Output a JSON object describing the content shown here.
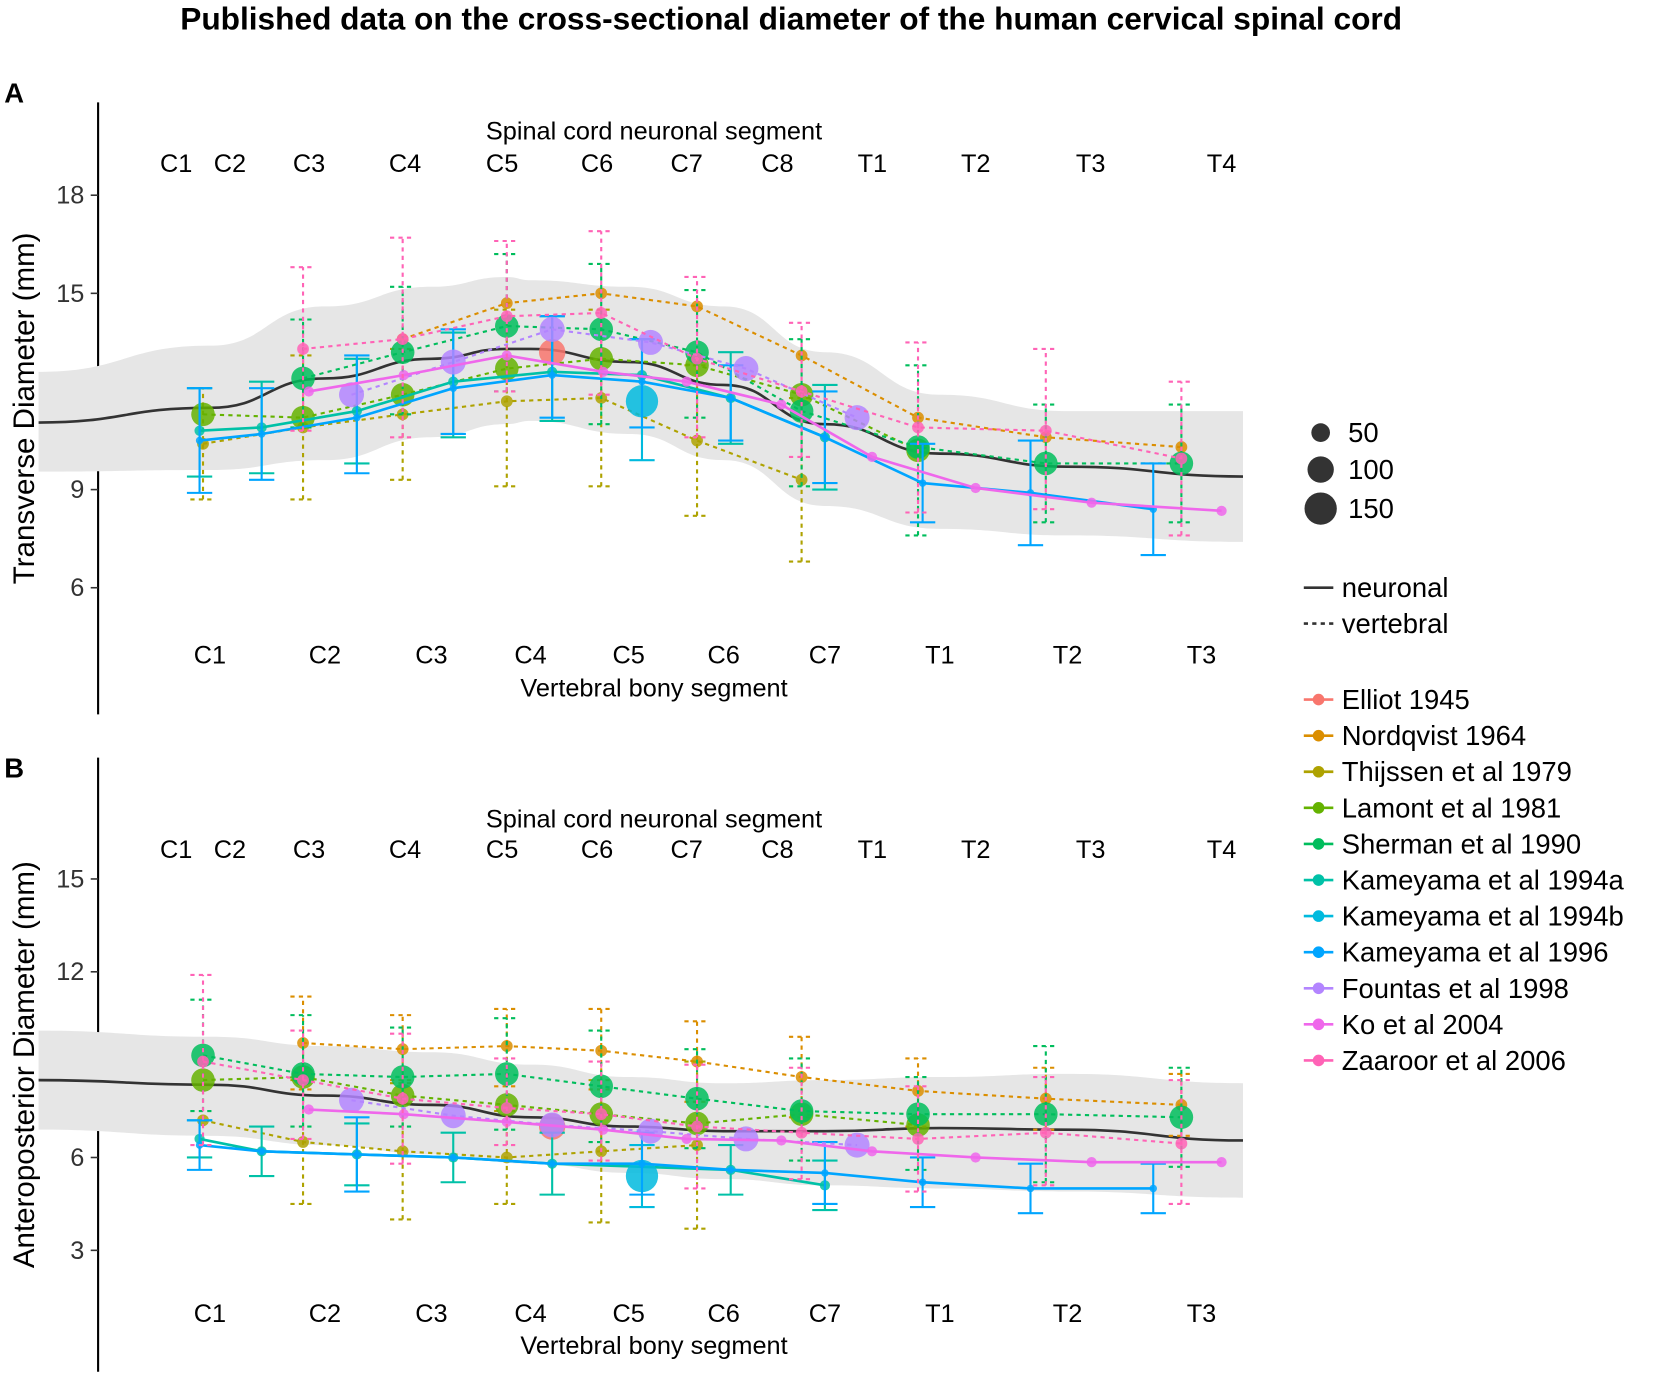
{
  "title": "Published data on the cross-sectional diameter of the human cervical spinal cord",
  "chart_data": [
    {
      "type": "scatter",
      "panel": "A",
      "ylabel": "Transverse Diameter (mm)",
      "top_axis_label": "Spinal cord neuronal segment",
      "top_ticks": [
        "C1",
        "C2",
        "C3",
        "C4",
        "C5",
        "C6",
        "C7",
        "C8",
        "T1",
        "T2",
        "T3",
        "T4"
      ],
      "xlabel": "Vertebral bony segment",
      "x_ticks": [
        "C1",
        "C2",
        "C3",
        "C4",
        "C5",
        "C6",
        "C7",
        "T1",
        "T2",
        "T3"
      ],
      "y_ticks": [
        6,
        9,
        12,
        15,
        18
      ],
      "ylim": [
        2.7,
        20.3
      ],
      "neuronal_fit": {
        "x": [
          -0.49,
          1,
          2,
          3,
          3.76,
          4,
          5,
          6,
          7,
          8,
          9,
          10.31
        ],
        "y": [
          11.05,
          11.5,
          12.4,
          13.0,
          13.3,
          13.3,
          12.9,
          12.2,
          11.0,
          10.1,
          9.7,
          9.4
        ],
        "band_upper": [
          12.6,
          13.4,
          14.6,
          15.2,
          15.5,
          15.4,
          15.2,
          14.6,
          13.2,
          11.9,
          11.4,
          11.4
        ],
        "band_lower": [
          9.55,
          9.6,
          9.9,
          10.6,
          11.0,
          11.1,
          10.7,
          9.9,
          8.5,
          7.8,
          7.6,
          7.4
        ]
      }
    },
    {
      "type": "scatter",
      "panel": "B",
      "ylabel": "Anteroposterior Diameter (mm)",
      "top_axis_label": "Spinal cord neuronal segment",
      "top_ticks": [
        "C1",
        "C2",
        "C3",
        "C4",
        "C5",
        "C6",
        "C7",
        "C8",
        "T1",
        "T2",
        "T3",
        "T4"
      ],
      "xlabel": "Vertebral bony segment",
      "x_ticks": [
        "C1",
        "C2",
        "C3",
        "C4",
        "C5",
        "C6",
        "C7",
        "T1",
        "T2",
        "T3"
      ],
      "y_ticks": [
        3,
        6,
        9,
        12,
        15
      ],
      "ylim": [
        -0.3,
        18.5
      ],
      "neuronal_fit": {
        "x": [
          -0.49,
          1,
          2,
          3,
          4,
          5,
          6,
          7,
          8,
          9,
          10.31
        ],
        "y": [
          8.5,
          8.35,
          8.0,
          7.7,
          7.3,
          7.0,
          6.85,
          6.85,
          6.95,
          6.9,
          6.55
        ],
        "band_upper": [
          10.1,
          9.9,
          9.6,
          9.4,
          9.0,
          8.6,
          8.4,
          8.5,
          8.6,
          8.7,
          8.4
        ],
        "band_lower": [
          6.9,
          6.7,
          6.4,
          6.1,
          5.8,
          5.5,
          5.3,
          5.1,
          5.0,
          4.9,
          4.7
        ]
      }
    }
  ],
  "series": [
    {
      "name": "Elliot 1945",
      "color": "#F8766D",
      "line": "none",
      "n": 100,
      "A": [
        [
          4.22,
          13.2
        ]
      ],
      "B": [
        [
          4.22,
          7.0
        ]
      ]
    },
    {
      "name": "Nordqvist 1964",
      "color": "#DB8E00",
      "line": "vertebral",
      "n": 20,
      "A": [
        [
          2.73,
          13.6
        ],
        [
          3.76,
          14.7
        ],
        [
          4.72,
          15.0
        ],
        [
          5.72,
          14.6
        ],
        [
          6.77,
          13.1
        ],
        [
          7.81,
          11.2
        ],
        [
          8.83,
          10.6
        ],
        [
          9.85,
          10.3
        ]
      ],
      "B": [
        [
          1.81,
          9.7,
          8.2,
          11.2
        ],
        [
          2.73,
          9.5,
          8.5,
          10.6
        ],
        [
          3.76,
          9.6,
          8.3,
          10.8
        ],
        [
          4.72,
          9.45,
          8.2,
          10.8
        ],
        [
          5.72,
          9.1,
          7.8,
          10.4
        ],
        [
          6.77,
          8.6,
          7.3,
          9.9
        ],
        [
          7.81,
          8.15,
          7.0,
          9.2
        ],
        [
          8.83,
          7.9,
          6.9,
          8.9
        ],
        [
          9.85,
          7.7,
          6.7,
          8.7
        ]
      ]
    },
    {
      "name": "Thijssen et al 1979",
      "color": "#AEA200",
      "line": "vertebral",
      "n": 20,
      "A": [
        [
          0.94,
          10.4,
          8.7,
          12.1
        ],
        [
          1.81,
          10.9,
          8.7,
          13.1
        ],
        [
          2.73,
          11.3,
          9.3,
          13.3
        ],
        [
          3.76,
          11.7,
          9.1,
          14.5
        ],
        [
          4.72,
          11.8,
          9.1,
          14.5
        ],
        [
          5.72,
          10.5,
          8.2,
          12.8
        ],
        [
          6.77,
          9.3,
          6.8,
          11.8
        ]
      ],
      "B": [
        [
          0.94,
          7.2
        ],
        [
          1.81,
          6.5,
          4.5,
          8.5
        ],
        [
          2.73,
          6.2,
          4.0,
          8.4
        ],
        [
          3.76,
          6.0,
          4.5,
          7.5
        ],
        [
          4.72,
          6.2,
          3.9,
          8.5
        ],
        [
          5.72,
          6.4,
          3.7,
          9.1
        ]
      ]
    },
    {
      "name": "Lamont et al 1981",
      "color": "#64B200",
      "line": "vertebral",
      "n": 80,
      "A": [
        [
          0.94,
          11.3
        ],
        [
          1.81,
          11.2
        ],
        [
          2.73,
          11.9
        ],
        [
          3.76,
          12.7
        ],
        [
          4.72,
          13.0
        ],
        [
          5.72,
          12.8
        ],
        [
          6.77,
          11.9
        ],
        [
          7.81,
          10.2
        ]
      ],
      "B": [
        [
          0.94,
          8.5
        ],
        [
          1.81,
          8.6
        ],
        [
          2.73,
          8.0
        ],
        [
          3.76,
          7.7
        ],
        [
          4.72,
          7.4
        ],
        [
          5.72,
          7.1
        ],
        [
          6.77,
          7.4
        ],
        [
          7.81,
          7.05
        ]
      ]
    },
    {
      "name": "Sherman et al 1990",
      "color": "#00BD5C",
      "line": "vertebral",
      "n": 80,
      "A": [
        [
          1.81,
          12.4,
          10.9,
          14.2
        ],
        [
          2.73,
          13.2,
          11.3,
          15.2
        ],
        [
          3.76,
          14.0,
          12.0,
          16.2
        ],
        [
          4.72,
          13.9,
          11.0,
          15.9
        ],
        [
          5.72,
          13.2,
          11.2,
          15.1
        ],
        [
          6.77,
          11.4,
          9.1,
          13.6
        ],
        [
          7.81,
          10.3,
          7.6,
          12.8
        ],
        [
          8.83,
          9.8,
          8.0,
          11.6
        ],
        [
          9.85,
          9.8,
          8.0,
          11.6
        ]
      ],
      "B": [
        [
          0.94,
          9.3,
          7.5,
          11.1
        ],
        [
          1.81,
          8.7,
          7.0,
          10.6
        ],
        [
          2.73,
          8.6,
          7.0,
          10.2
        ],
        [
          3.76,
          8.7,
          6.9,
          10.5
        ],
        [
          4.72,
          8.3,
          6.5,
          10.1
        ],
        [
          5.72,
          7.9,
          6.3,
          9.5
        ],
        [
          6.77,
          7.5,
          5.9,
          9.2
        ],
        [
          7.81,
          7.4,
          5.6,
          8.6
        ],
        [
          8.83,
          7.4,
          5.2,
          9.6
        ],
        [
          9.85,
          7.3,
          5.7,
          8.9
        ]
      ]
    },
    {
      "name": "Kameyama et al 1994a",
      "color": "#00C1A7",
      "line": "neuronal",
      "n": 15,
      "A": [
        [
          0.91,
          10.8,
          9.4,
          12.1
        ],
        [
          1.45,
          10.9,
          9.5,
          12.3
        ],
        [
          2.3,
          11.4,
          9.8,
          13.0
        ],
        [
          3.22,
          12.3,
          10.6,
          13.8
        ],
        [
          4.22,
          12.6,
          11.1,
          14.3
        ],
        [
          5.14,
          12.5
        ],
        [
          6.07,
          11.8,
          10.4,
          13.2
        ],
        [
          7.0,
          10.6,
          9.0,
          12.2
        ]
      ],
      "B": [
        [
          0.91,
          6.6,
          6.0,
          7.2
        ],
        [
          1.45,
          6.2,
          5.4,
          7.0
        ],
        [
          2.3,
          6.1,
          5.1,
          7.1
        ],
        [
          3.22,
          6.0,
          5.2,
          6.8
        ],
        [
          4.22,
          5.8,
          4.8,
          6.8
        ],
        [
          6.07,
          5.6,
          4.8,
          6.4
        ],
        [
          7.0,
          5.1,
          4.3,
          5.9
        ]
      ]
    },
    {
      "name": "Kameyama et al 1994b",
      "color": "#00BADE",
      "line": "none",
      "n": 150,
      "A": [
        [
          5.14,
          11.7,
          9.9,
          13.6
        ]
      ],
      "B": [
        [
          5.14,
          5.4,
          4.4,
          6.4
        ]
      ]
    },
    {
      "name": "Kameyama et al 1996",
      "color": "#00A5FF",
      "line": "neuronal",
      "n": 8,
      "A": [
        [
          0.91,
          10.5,
          8.9,
          12.1
        ],
        [
          1.45,
          10.7,
          9.3,
          12.1
        ],
        [
          2.3,
          11.2,
          9.5,
          13.1
        ],
        [
          3.22,
          12.1,
          10.7,
          13.9
        ],
        [
          4.22,
          12.5,
          11.2,
          14.3
        ],
        [
          5.14,
          12.3,
          10.9,
          13.6
        ],
        [
          6.07,
          11.8,
          10.5,
          12.8
        ],
        [
          7.0,
          10.6,
          9.2,
          12.0
        ],
        [
          7.85,
          9.2,
          8.0,
          10.4
        ],
        [
          8.71,
          8.9,
          7.3,
          10.5
        ],
        [
          9.64,
          8.4,
          7.0,
          9.8
        ]
      ],
      "B": [
        [
          0.91,
          6.4,
          5.6,
          7.2
        ],
        [
          1.45,
          6.2
        ],
        [
          2.3,
          6.1,
          4.9,
          7.3
        ],
        [
          3.22,
          6.0
        ],
        [
          4.22,
          5.8
        ],
        [
          5.14,
          5.8,
          4.8,
          6.8
        ],
        [
          6.07,
          5.6
        ],
        [
          7.0,
          5.5,
          4.5,
          6.5
        ],
        [
          7.85,
          5.2,
          4.4,
          6.0
        ],
        [
          8.71,
          5.0,
          4.2,
          5.8
        ],
        [
          9.64,
          5.0,
          4.2,
          5.8
        ]
      ]
    },
    {
      "name": "Fountas et al 1998",
      "color": "#B385FF",
      "line": "vertebral",
      "n": 90,
      "A": [
        [
          2.25,
          11.9
        ],
        [
          3.22,
          12.9
        ],
        [
          4.22,
          13.9
        ],
        [
          5.23,
          13.5
        ],
        [
          6.22,
          12.7
        ],
        [
          7.28,
          11.2
        ]
      ],
      "B": [
        [
          2.25,
          7.85
        ],
        [
          3.22,
          7.35
        ],
        [
          4.22,
          7.05
        ],
        [
          5.23,
          6.85
        ],
        [
          6.22,
          6.6
        ],
        [
          7.28,
          6.4
        ]
      ]
    },
    {
      "name": "Ko et al 2004",
      "color": "#EF67EB",
      "line": "neuronal",
      "n": 15,
      "A": [
        [
          1.86,
          12.0
        ],
        [
          2.74,
          12.5
        ],
        [
          3.76,
          13.1
        ],
        [
          4.74,
          12.6
        ],
        [
          5.61,
          12.3
        ],
        [
          6.57,
          11.6
        ],
        [
          7.41,
          10.0
        ],
        [
          8.28,
          9.05
        ],
        [
          9.18,
          8.6
        ],
        [
          10.15,
          8.35
        ]
      ],
      "B": [
        [
          1.86,
          7.55
        ],
        [
          2.74,
          7.4
        ],
        [
          3.76,
          7.15
        ],
        [
          4.74,
          6.9
        ],
        [
          5.61,
          6.6
        ],
        [
          6.57,
          6.55
        ],
        [
          7.41,
          6.2
        ],
        [
          8.28,
          6.0
        ],
        [
          9.18,
          5.85
        ],
        [
          10.15,
          5.85
        ]
      ]
    },
    {
      "name": "Zaaroor et al 2006",
      "color": "#FF63B6",
      "line": "vertebral",
      "n": 20,
      "A": [
        [
          1.81,
          13.3,
          10.8,
          15.8
        ],
        [
          2.73,
          13.6,
          10.6,
          16.7
        ],
        [
          3.76,
          14.3,
          12.0,
          16.6
        ],
        [
          4.72,
          14.4,
          11.9,
          16.9
        ],
        [
          5.72,
          13.0,
          10.6,
          15.5
        ],
        [
          6.77,
          12.0,
          10.0,
          14.1
        ],
        [
          7.81,
          10.9,
          8.3,
          13.5
        ],
        [
          8.83,
          10.8,
          8.4,
          13.3
        ],
        [
          9.85,
          9.95,
          7.6,
          12.3
        ]
      ],
      "B": [
        [
          0.94,
          9.1,
          6.4,
          11.9
        ],
        [
          1.81,
          8.5,
          6.6,
          10.1
        ],
        [
          2.73,
          7.9,
          5.8,
          10.0
        ],
        [
          3.76,
          7.6,
          6.4,
          9.2
        ],
        [
          4.72,
          7.4,
          5.9,
          9.1
        ],
        [
          5.72,
          7.0,
          5.0,
          9.0
        ],
        [
          6.77,
          6.8,
          5.3,
          8.9
        ],
        [
          7.81,
          6.6,
          4.9,
          8.3
        ],
        [
          8.83,
          6.8,
          5.1,
          8.6
        ],
        [
          9.85,
          6.45,
          4.5,
          8.5
        ]
      ]
    }
  ],
  "legend": {
    "size_items": [
      {
        "label": "50",
        "n": 50
      },
      {
        "label": "100",
        "n": 100
      },
      {
        "label": "150",
        "n": 150
      }
    ],
    "linetype_items": [
      {
        "label": "neuronal"
      },
      {
        "label": "vertebral"
      }
    ]
  }
}
